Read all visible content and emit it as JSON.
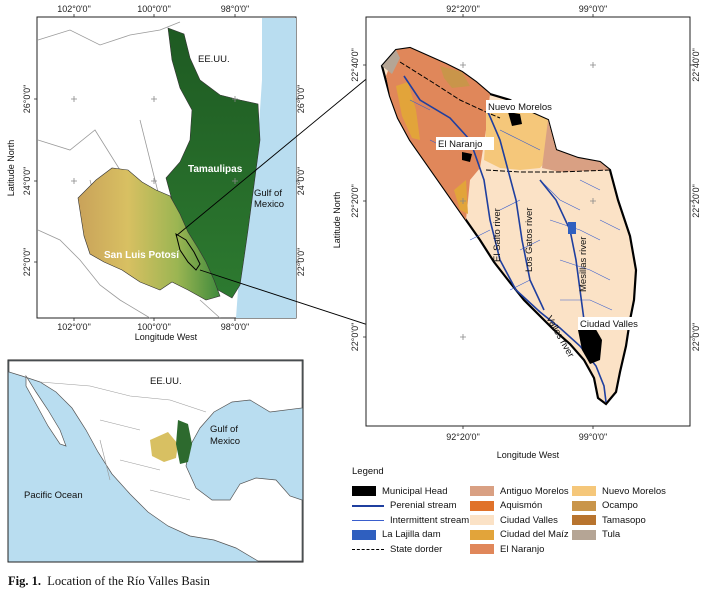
{
  "main_map": {
    "top_ticks": [
      "102°0'0\"",
      "100°0'0\"",
      "98°0'0\""
    ],
    "bottom_ticks": [
      "102°0'0\"",
      "100°0'0\"",
      "98°0'0\""
    ],
    "left_ticks": [
      "26°0'0\"",
      "24°0'0\"",
      "22°0'0\""
    ],
    "right_ticks": [
      "26°0'0\"",
      "24°0'0\"",
      "22°0'0\""
    ],
    "xlabel": "Longitude West",
    "ylabel": "Latitude North",
    "labels": {
      "usa": "EE.UU.",
      "tamaulipas": "Tamaulipas",
      "gulf1": "Gulf of",
      "gulf2": "Mexico",
      "slp": "San Luis Potosí"
    }
  },
  "basin_map": {
    "top_ticks": [
      "92°20'0\"",
      "99°0'0\""
    ],
    "bottom_ticks": [
      "92°20'0\"",
      "99°0'0\""
    ],
    "left_ticks": [
      "22°40'0\"",
      "22°20'0\"",
      "22°0'0\""
    ],
    "right_ticks": [
      "22°40'0\"",
      "22°20'0\"",
      "22°0'0\""
    ],
    "xlabel": "Longitude West",
    "ylabel": "Latitude North",
    "labels": {
      "nuevo_morelos": "Nuevo Morelos",
      "el_naranjo": "El Naranjo",
      "ciudad_valles": "Ciudad Valles",
      "el_salto": "El Salto river",
      "los_gatos": "Los Gatos river",
      "mesillas": "Mesillas river",
      "valles": "Valles river"
    }
  },
  "inset_map": {
    "labels": {
      "usa": "EE.UU.",
      "gulf1": "Gulf of",
      "gulf2": "Mexico",
      "pacific": "Pacific Ocean"
    }
  },
  "legend": {
    "title": "Legend",
    "items": [
      {
        "label": "Municipal Head",
        "kind": "fill",
        "color": "#000000"
      },
      {
        "label": "Perenial stream",
        "kind": "line-thick",
        "color": "#1f3f9f"
      },
      {
        "label": "Intermittent stream",
        "kind": "line-thin",
        "color": "#3a5fcd"
      },
      {
        "label": "La Lajilla dam",
        "kind": "fill",
        "color": "#2f5fbf"
      },
      {
        "label": "State dorder",
        "kind": "border",
        "color": "#000000"
      },
      {
        "label": "Antiguo Morelos",
        "kind": "fill",
        "color": "#d9a083"
      },
      {
        "label": "Aquismón",
        "kind": "fill",
        "color": "#e0722a"
      },
      {
        "label": "Ciudad Valles",
        "kind": "fill",
        "color": "#fbe2c6"
      },
      {
        "label": "Ciudad del Maíz",
        "kind": "fill",
        "color": "#e2a43a"
      },
      {
        "label": "El Naranjo",
        "kind": "fill",
        "color": "#e0875a"
      },
      {
        "label": "Nuevo Morelos",
        "kind": "fill",
        "color": "#f5c77a"
      },
      {
        "label": "Ocampo",
        "kind": "fill",
        "color": "#c9954a"
      },
      {
        "label": "Tamasopo",
        "kind": "fill",
        "color": "#b8742e"
      },
      {
        "label": "Tula",
        "kind": "fill",
        "color": "#b5a595"
      }
    ]
  },
  "caption": {
    "prefix": "Fig. 1.",
    "text": "Location of the Río Valles Basin"
  }
}
